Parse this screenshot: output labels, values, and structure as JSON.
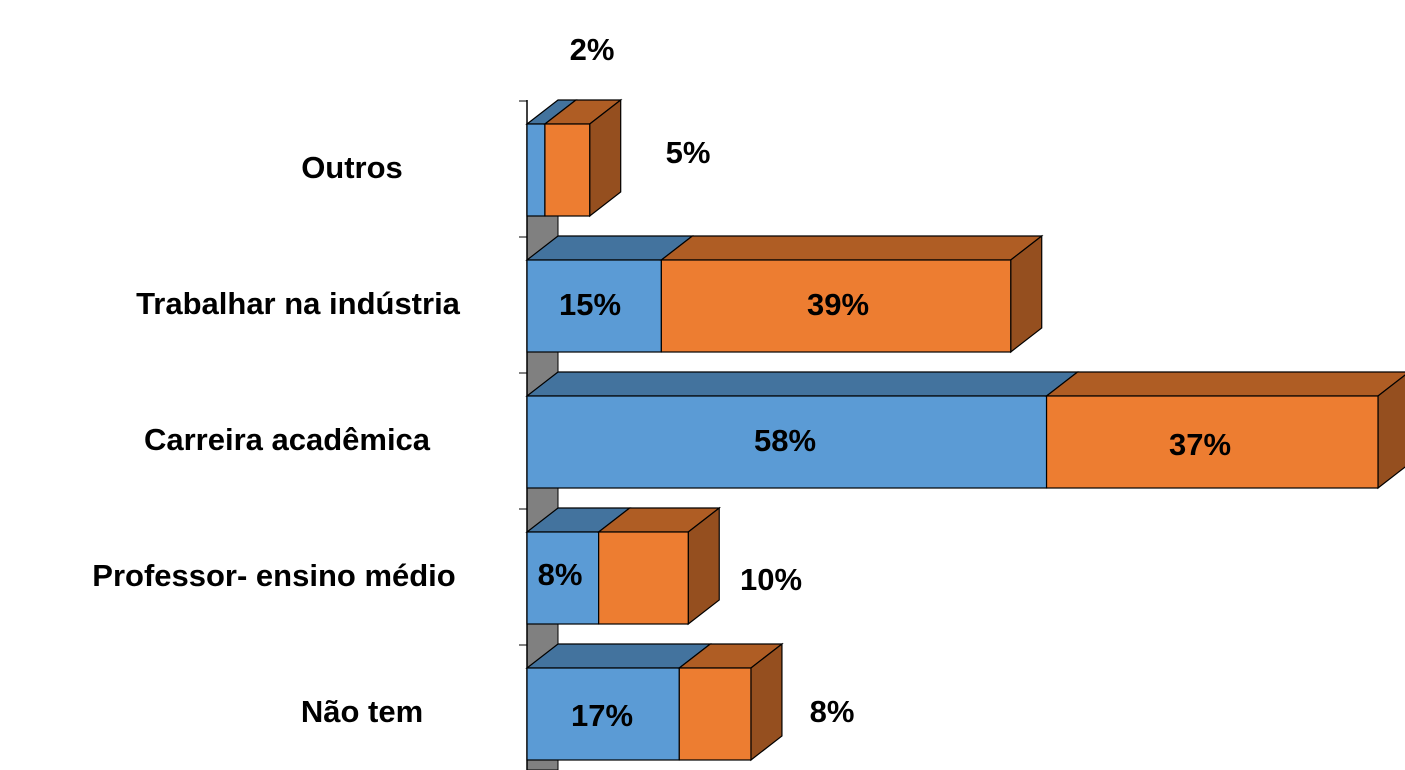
{
  "chart_data": {
    "type": "bar3d_stacked_horizontal",
    "categories": [
      "Outros",
      "Trabalhar na indústria",
      "Carreira acadêmica",
      "Professor- ensino médio",
      "Não tem"
    ],
    "series": [
      {
        "color": "#5b9bd5",
        "values": [
          2,
          15,
          58,
          8,
          17
        ],
        "value_labels": [
          "2%",
          "15%",
          "58%",
          "8%",
          "17%"
        ]
      },
      {
        "color": "#ed7d31",
        "values": [
          5,
          39,
          37,
          10,
          8
        ],
        "value_labels": [
          "5%",
          "39%",
          "37%",
          "10%",
          "8%"
        ]
      }
    ]
  }
}
